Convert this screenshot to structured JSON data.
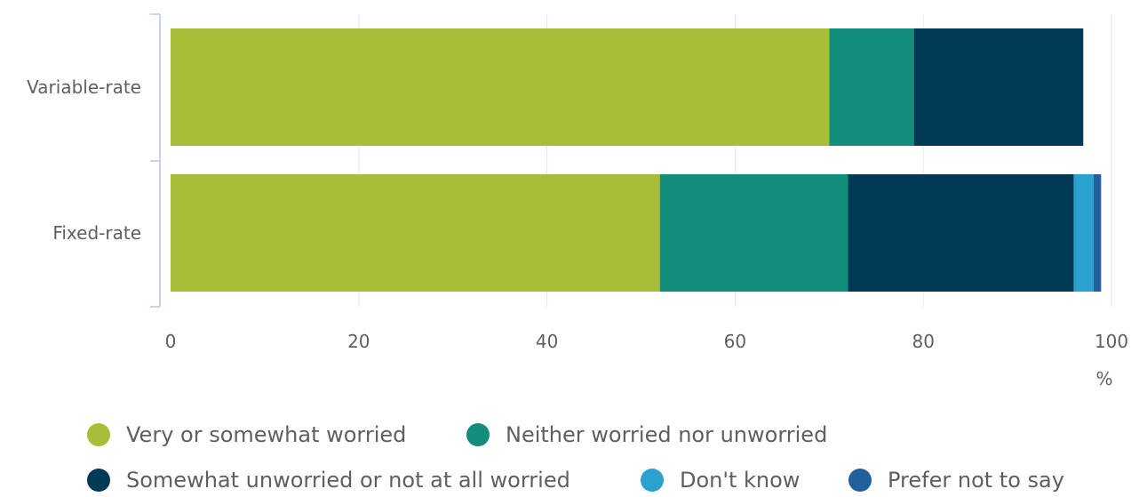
{
  "chart_data": {
    "type": "bar",
    "orientation": "horizontal",
    "stacked": true,
    "categories": [
      "Variable-rate",
      "Fixed-rate"
    ],
    "series": [
      {
        "name": "Very or somewhat worried",
        "values": [
          70,
          52
        ],
        "color": "#a9bd38"
      },
      {
        "name": "Neither worried nor unworried",
        "values": [
          9,
          20
        ],
        "color": "#128c7b"
      },
      {
        "name": "Somewhat unworried or not at all worried",
        "values": [
          18,
          24
        ],
        "color": "#003a57"
      },
      {
        "name": "Don't know",
        "values": [
          0,
          2.1
        ],
        "color": "#2ba1cf"
      },
      {
        "name": "Prefer not to say",
        "values": [
          0,
          0.8
        ],
        "color": "#225f9c"
      }
    ],
    "xlim": [
      0,
      100
    ],
    "xticks": [
      0,
      20,
      40,
      60,
      80,
      100
    ],
    "xunit": "%",
    "grid": true,
    "legend_position": "bottom"
  }
}
